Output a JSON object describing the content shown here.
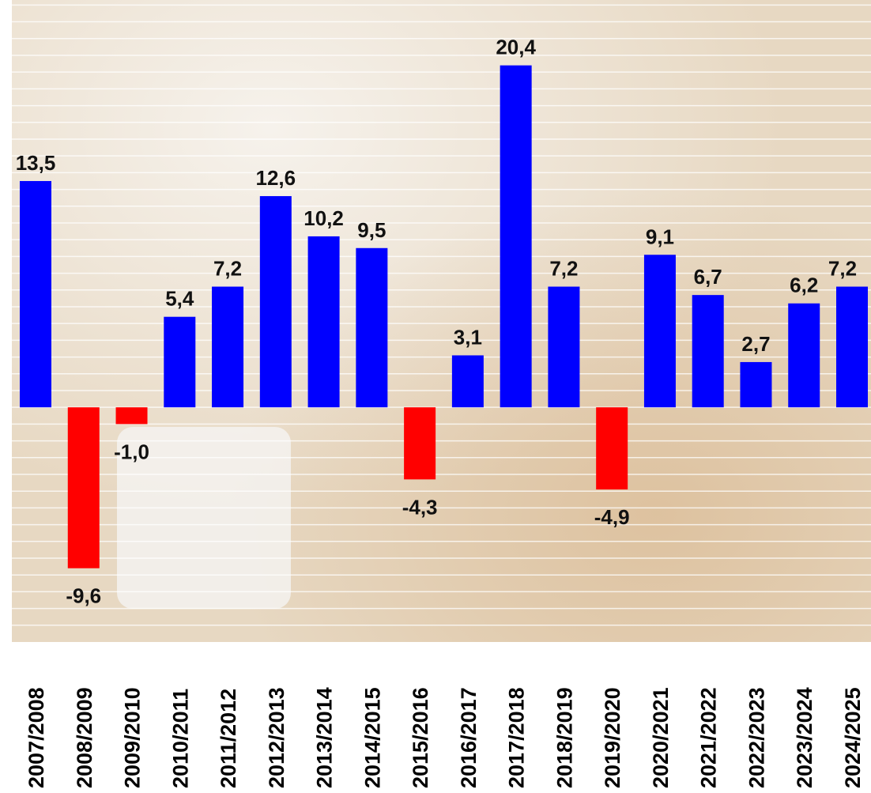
{
  "chart_data": {
    "type": "bar",
    "categories": [
      "2007/2008",
      "2008/2009",
      "2009/2010",
      "2010/2011",
      "2011/2012",
      "2012/2013",
      "2013/2014",
      "2014/2015",
      "2015/2016",
      "2016/2017",
      "2017/2018",
      "2018/2019",
      "2019/2020",
      "2020/2021",
      "2021/2022",
      "2022/2023",
      "2023/2024",
      "2024/2025"
    ],
    "values": [
      13.5,
      -9.6,
      -1.0,
      5.4,
      7.2,
      12.6,
      10.2,
      9.5,
      -4.3,
      3.1,
      20.4,
      7.2,
      -4.9,
      9.1,
      6.7,
      2.7,
      6.2,
      7.2
    ],
    "value_labels": [
      "13,5",
      "-9,6",
      "-1,0",
      "5,4",
      "7,2",
      "12,6",
      "10,2",
      "9,5",
      "-4,3",
      "3,1",
      "20,4",
      "7,2",
      "-4,9",
      "9,1",
      "6,7",
      "2,7",
      "6,2",
      "7,2"
    ],
    "color_positive": "#0000ff",
    "color_negative": "#ff0000",
    "ylim": [
      -14,
      24.3
    ],
    "yticks": [
      -13,
      -12,
      -11,
      -10,
      -9,
      -8,
      -7,
      -6,
      -5,
      -4,
      -3,
      -2,
      -1,
      0,
      1,
      2,
      3,
      4,
      5,
      6,
      7,
      8,
      9,
      10,
      11,
      12,
      13,
      14,
      15,
      16,
      17,
      18,
      19,
      20,
      21,
      22,
      23,
      24
    ],
    "tick_labels": false,
    "grid": true
  }
}
